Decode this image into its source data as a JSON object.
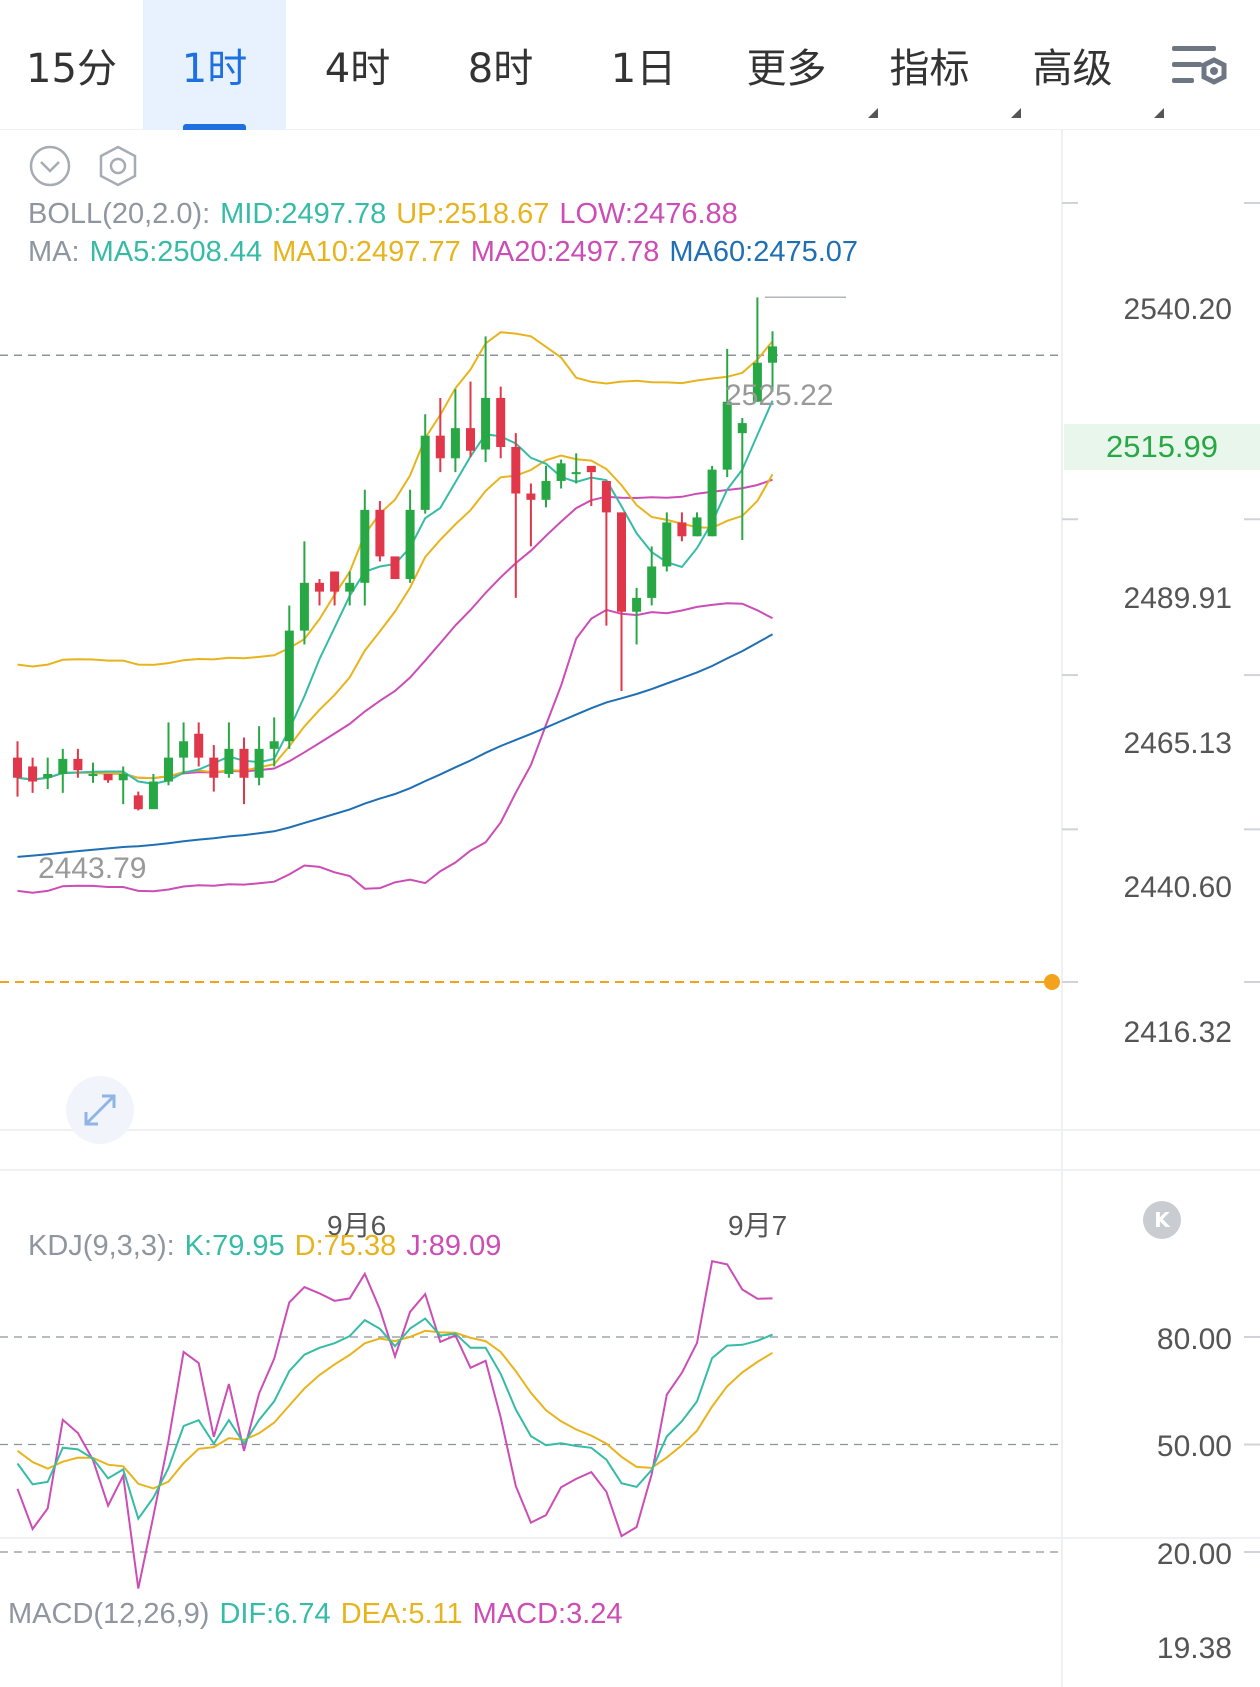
{
  "toolbar": {
    "tabs": [
      {
        "label": "15分",
        "active": false
      },
      {
        "label": "1时",
        "active": true
      },
      {
        "label": "4时",
        "active": false
      },
      {
        "label": "8时",
        "active": false
      },
      {
        "label": "1日",
        "active": false
      },
      {
        "label": "更多",
        "active": false,
        "dropdown": true
      },
      {
        "label": "指标",
        "active": false,
        "dropdown": true
      },
      {
        "label": "高级",
        "active": false,
        "dropdown": true
      }
    ],
    "settings_icon": "chart-settings-icon"
  },
  "main_chart": {
    "boll": {
      "prefix": "BOLL(20,2.0):",
      "mid": "MID:2497.78",
      "up": "UP:2518.67",
      "low": "LOW:2476.88"
    },
    "ma": {
      "prefix": "MA:",
      "ma5": "MA5:2508.44",
      "ma10": "MA10:2497.77",
      "ma20": "MA20:2497.78",
      "ma60": "MA60:2475.07"
    },
    "price_axis": [
      "2540.20",
      "2515.99",
      "2489.91",
      "2465.13",
      "2440.60",
      "2416.32"
    ],
    "current_price": "2515.99",
    "high_annotation": "2525.22",
    "low_annotation": "2443.79",
    "alert_price": 2416.32,
    "dates": [
      "9月6",
      "9月7"
    ]
  },
  "kdj": {
    "prefix": "KDJ(9,3,3):",
    "k": "K:79.95",
    "d": "D:75.38",
    "j": "J:89.09",
    "axis": [
      "80.00",
      "50.00",
      "20.00"
    ]
  },
  "macd": {
    "prefix": "MACD(12,26,9)",
    "dif": "DIF:6.74",
    "dea": "DEA:5.11",
    "macd": "MACD:3.24",
    "axis_value": "19.38"
  },
  "colors": {
    "up": "#27a845",
    "down": "#e0374a",
    "mid": "#e8b41e",
    "upper": "#e8b41e",
    "lower": "#cc4db5",
    "ma5": "#36bca6",
    "ma10": "#e8b41e",
    "ma20": "#cc4db5",
    "ma60": "#1f6fb5",
    "k": "#36bca6",
    "d": "#e8b41e",
    "j": "#cc4db5",
    "active_tab": "#1e6fe0"
  },
  "chart_data": {
    "type": "candlestick",
    "candles": [
      [
        2452.0,
        2448.8,
        2454.6,
        2445.8
      ],
      [
        2450.6,
        2448.2,
        2452.0,
        2446.4
      ],
      [
        2448.8,
        2449.4,
        2452.0,
        2447.0
      ],
      [
        2449.4,
        2451.8,
        2453.4,
        2446.4
      ],
      [
        2451.8,
        2450.0,
        2453.4,
        2448.8
      ],
      [
        2449.4,
        2449.4,
        2451.2,
        2448.0
      ],
      [
        2449.4,
        2448.4,
        2449.4,
        2448.0
      ],
      [
        2448.4,
        2449.4,
        2450.6,
        2444.6
      ],
      [
        2446.0,
        2443.8,
        2446.6,
        2443.6
      ],
      [
        2443.8,
        2448.2,
        2449.4,
        2444.6
      ],
      [
        2448.2,
        2452.0,
        2457.6,
        2447.6
      ],
      [
        2452.0,
        2454.6,
        2457.6,
        2449.4
      ],
      [
        2455.8,
        2452.0,
        2457.6,
        2450.6
      ],
      [
        2452.0,
        2448.8,
        2454.0,
        2446.6
      ],
      [
        2449.4,
        2453.4,
        2457.6,
        2448.8
      ],
      [
        2453.4,
        2448.8,
        2455.2,
        2444.6
      ],
      [
        2448.8,
        2453.4,
        2457.0,
        2447.6
      ],
      [
        2453.4,
        2454.6,
        2458.4,
        2450.6
      ],
      [
        2454.6,
        2472.2,
        2476.2,
        2453.4
      ],
      [
        2472.2,
        2479.8,
        2486.4,
        2470.0
      ],
      [
        2479.8,
        2478.4,
        2480.4,
        2476.2
      ],
      [
        2481.6,
        2478.4,
        2481.6,
        2476.2
      ],
      [
        2478.4,
        2479.8,
        2481.6,
        2476.2
      ],
      [
        2479.8,
        2491.4,
        2494.6,
        2476.2
      ],
      [
        2491.4,
        2484.0,
        2492.8,
        2483.2
      ],
      [
        2484.0,
        2480.4,
        2483.2,
        2480.4
      ],
      [
        2480.4,
        2491.4,
        2494.6,
        2479.8
      ],
      [
        2491.4,
        2503.2,
        2506.6,
        2490.8
      ],
      [
        2503.2,
        2499.6,
        2509.2,
        2497.4
      ],
      [
        2499.6,
        2504.4,
        2510.6,
        2497.4
      ],
      [
        2504.4,
        2500.8,
        2511.8,
        2499.8
      ],
      [
        2501.0,
        2509.2,
        2519.0,
        2499.0
      ],
      [
        2509.2,
        2501.4,
        2511.0,
        2499.6
      ],
      [
        2501.4,
        2494.0,
        2503.6,
        2477.4
      ],
      [
        2494.0,
        2493.0,
        2495.6,
        2485.6
      ],
      [
        2493.0,
        2496.0,
        2498.4,
        2491.8
      ],
      [
        2496.0,
        2498.8,
        2499.4,
        2494.8
      ],
      [
        2497.4,
        2497.4,
        2500.4,
        2495.6
      ],
      [
        2498.4,
        2497.4,
        2497.4,
        2492.0
      ],
      [
        2496.0,
        2491.0,
        2495.6,
        2473.0
      ],
      [
        2491.0,
        2475.2,
        2491.0,
        2462.6
      ],
      [
        2475.2,
        2477.4,
        2479.0,
        2470.0
      ],
      [
        2477.4,
        2482.4,
        2485.6,
        2476.2
      ],
      [
        2482.4,
        2489.4,
        2491.0,
        2481.6
      ],
      [
        2489.4,
        2487.2,
        2491.0,
        2486.4
      ],
      [
        2487.2,
        2490.2,
        2491.0,
        2487.2
      ],
      [
        2487.2,
        2497.8,
        2498.4,
        2487.2
      ],
      [
        2497.8,
        2508.6,
        2517.0,
        2496.6
      ],
      [
        2503.6,
        2505.2,
        2506.0,
        2486.6
      ],
      [
        2508.6,
        2514.8,
        2525.2,
        2508.6
      ],
      [
        2514.8,
        2517.4,
        2519.8,
        2510.2
      ]
    ],
    "kdj": {
      "k": 79.95,
      "d": 75.38,
      "j": 89.09
    },
    "macd": {
      "dif": 6.74,
      "dea": 5.11,
      "macd": 3.24
    },
    "ylim": [
      2408.0,
      2556.0
    ],
    "kdj_ylim": [
      0,
      110
    ]
  }
}
